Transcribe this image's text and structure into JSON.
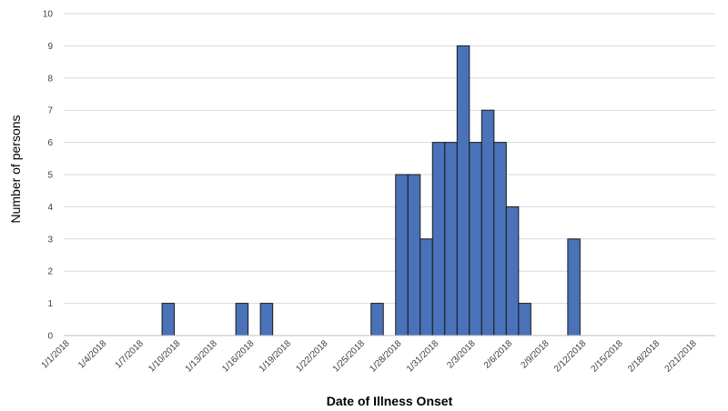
{
  "chart_data": {
    "type": "bar",
    "title": "",
    "xlabel": "Date of Illness Onset",
    "ylabel": "Number of persons",
    "ylim": [
      0,
      10
    ],
    "yticks": [
      0,
      1,
      2,
      3,
      4,
      5,
      6,
      7,
      8,
      9,
      10
    ],
    "xlim": [
      "2018-01-01",
      "2018-02-23"
    ],
    "xtick_labels": [
      "1/1/2018",
      "1/4/2018",
      "1/7/2018",
      "1/10/2018",
      "1/13/2018",
      "1/16/2018",
      "1/19/2018",
      "1/22/2018",
      "1/25/2018",
      "1/28/2018",
      "1/31/2018",
      "2/3/2018",
      "2/6/2018",
      "2/9/2018",
      "2/12/2018",
      "2/15/2018",
      "2/18/2018",
      "2/21/2018"
    ],
    "grid": true,
    "bar_color": "#4a72b8",
    "bar_edge_color": "#1a1a1a",
    "points": [
      {
        "date": "2018-01-09",
        "value": 1
      },
      {
        "date": "2018-01-15",
        "value": 1
      },
      {
        "date": "2018-01-17",
        "value": 1
      },
      {
        "date": "2018-01-26",
        "value": 1
      },
      {
        "date": "2018-01-28",
        "value": 5
      },
      {
        "date": "2018-01-29",
        "value": 5
      },
      {
        "date": "2018-01-30",
        "value": 3
      },
      {
        "date": "2018-01-31",
        "value": 6
      },
      {
        "date": "2018-02-01",
        "value": 6
      },
      {
        "date": "2018-02-02",
        "value": 9
      },
      {
        "date": "2018-02-03",
        "value": 6
      },
      {
        "date": "2018-02-04",
        "value": 7
      },
      {
        "date": "2018-02-05",
        "value": 6
      },
      {
        "date": "2018-02-06",
        "value": 4
      },
      {
        "date": "2018-02-07",
        "value": 1
      },
      {
        "date": "2018-02-11",
        "value": 3
      }
    ]
  }
}
